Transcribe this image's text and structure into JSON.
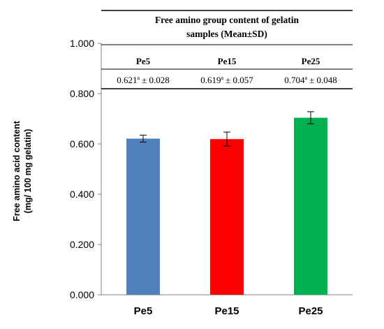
{
  "summary_table": {
    "title_line1": "Free amino group content of gelatin",
    "title_line2": "samples (Mean±SD)",
    "headers": [
      "Pe5",
      "Pe15",
      "Pe25"
    ],
    "cells": [
      {
        "mean": "0.621",
        "sup": "a",
        "sd": "± 0.028"
      },
      {
        "mean": "0.619",
        "sup": "a",
        "sd": "± 0.057"
      },
      {
        "mean": "0.704",
        "sup": "a",
        "sd": "± 0.048"
      }
    ]
  },
  "chart_data": {
    "type": "bar",
    "categories": [
      "Pe5",
      "Pe15",
      "Pe25"
    ],
    "values": [
      0.621,
      0.619,
      0.704
    ],
    "errors": [
      0.014,
      0.028,
      0.024
    ],
    "colors": [
      "#4f81bd",
      "#ff0000",
      "#00b050"
    ],
    "ylabel_line1": "Free amino acid content",
    "ylabel_line2": "(mg/ 100 mg gelatin)",
    "ylim": [
      0,
      1
    ],
    "yticks": [
      "0.000",
      "0.200",
      "0.400",
      "0.600",
      "0.800",
      "1.000"
    ],
    "ytick_values": [
      0,
      0.2,
      0.4,
      0.6,
      0.8,
      1.0
    ],
    "grid": false,
    "legend": "none"
  }
}
